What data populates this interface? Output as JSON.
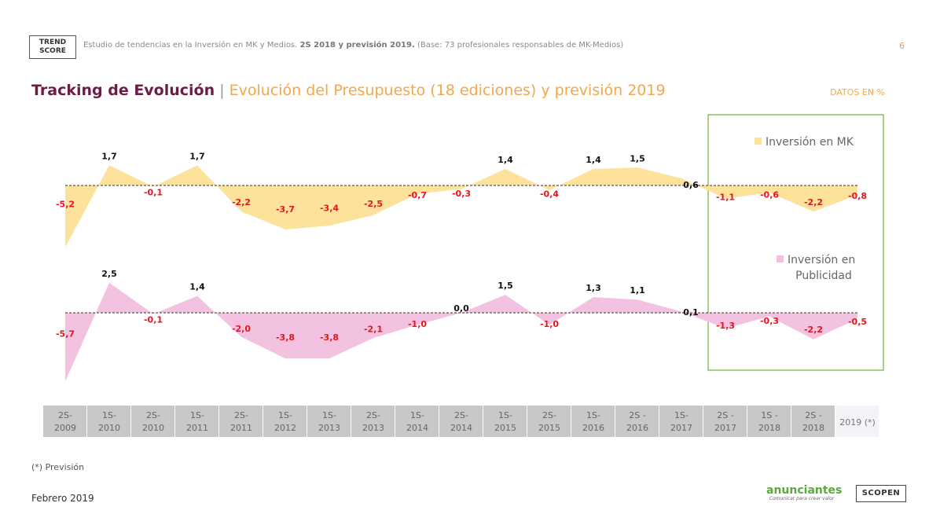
{
  "header": {
    "logo_line1": "TREND",
    "logo_line2": "SCORE",
    "study_prefix": "Estudio de tendencias en la Inversión en MK y Medios. ",
    "study_bold": "2S 2018 y previsión 2019.",
    "study_suffix": " (Base: 73 profesionales responsables de MK-Medios)",
    "page_number": "6"
  },
  "title": {
    "main": "Tracking de Evolución",
    "separator": "|",
    "sub": "Evolución del Presupuesto (18 ediciones) y previsión 2019",
    "units_note": "DATOS EN %"
  },
  "footer": {
    "note": "(*) Previsión",
    "date": "Febrero 2019",
    "brand1": "anunciantes",
    "brand1_tagline": "Comunicar para crear valor",
    "brand2": "SCOPEN"
  },
  "chart_data": {
    "type": "area",
    "categories": [
      [
        "2S-",
        "2009"
      ],
      [
        "1S-",
        "2010"
      ],
      [
        "2S-",
        "2010"
      ],
      [
        "1S-",
        "2011"
      ],
      [
        "2S-",
        "2011"
      ],
      [
        "1S-",
        "2012"
      ],
      [
        "1S-",
        "2013"
      ],
      [
        "2S-",
        "2013"
      ],
      [
        "1S-",
        "2014"
      ],
      [
        "2S-",
        "2014"
      ],
      [
        "1S-",
        "2015"
      ],
      [
        "2S-",
        "2015"
      ],
      [
        "1S-",
        "2016"
      ],
      [
        "2S -",
        "2016"
      ],
      [
        "1S-",
        "2017"
      ],
      [
        "2S -",
        "2017"
      ],
      [
        "1S -",
        "2018"
      ],
      [
        "2S -",
        "2018"
      ],
      [
        "2019 (*)"
      ]
    ],
    "forecast_category_index": 18,
    "series": [
      {
        "name": "Inversión en MK",
        "color": "#fce29b",
        "values": [
          -5.2,
          1.7,
          -0.1,
          1.7,
          -2.2,
          -3.7,
          -3.4,
          -2.5,
          -0.7,
          -0.3,
          1.4,
          -0.4,
          1.4,
          1.5,
          0.6,
          -1.1,
          -0.6,
          -2.2,
          -0.8
        ],
        "labels": [
          "-5,2",
          "1,7",
          "-0,1",
          "1,7",
          "-2,2",
          "-3,7",
          "-3,4",
          "-2,5",
          "-0,7",
          "-0,3",
          "1,4",
          "-0,4",
          "1,4",
          "1,5",
          "0,6",
          "-1,1",
          "-0,6",
          "-2,2",
          "-0,8"
        ]
      },
      {
        "name": "Inversión en Publicidad",
        "name_lines": [
          "Inversión en",
          "Publicidad"
        ],
        "color": "#f2c2e0",
        "values": [
          -5.7,
          2.5,
          -0.1,
          1.4,
          -2.0,
          -3.8,
          -3.8,
          -2.1,
          -1.0,
          0.0,
          1.5,
          -1.0,
          1.3,
          1.1,
          0.1,
          -1.3,
          -0.3,
          -2.2,
          -0.5
        ],
        "labels": [
          "-5,7",
          "2,5",
          "-0,1",
          "1,4",
          "-2,0",
          "-3,8",
          "-3,8",
          "-2,1",
          "-1,0",
          "0,0",
          "1,5",
          "-1,0",
          "1,3",
          "1,1",
          "0,1",
          "-1,3",
          "-0,3",
          "-2,2",
          "-0,5"
        ]
      }
    ],
    "label_colors": {
      "positive": "#111111",
      "negative": "#e8141c"
    },
    "highlight_box_color": "#6bb33a",
    "axis_band_color": "#c8c8c8",
    "forecast_band_color": "#f3f3f8"
  }
}
